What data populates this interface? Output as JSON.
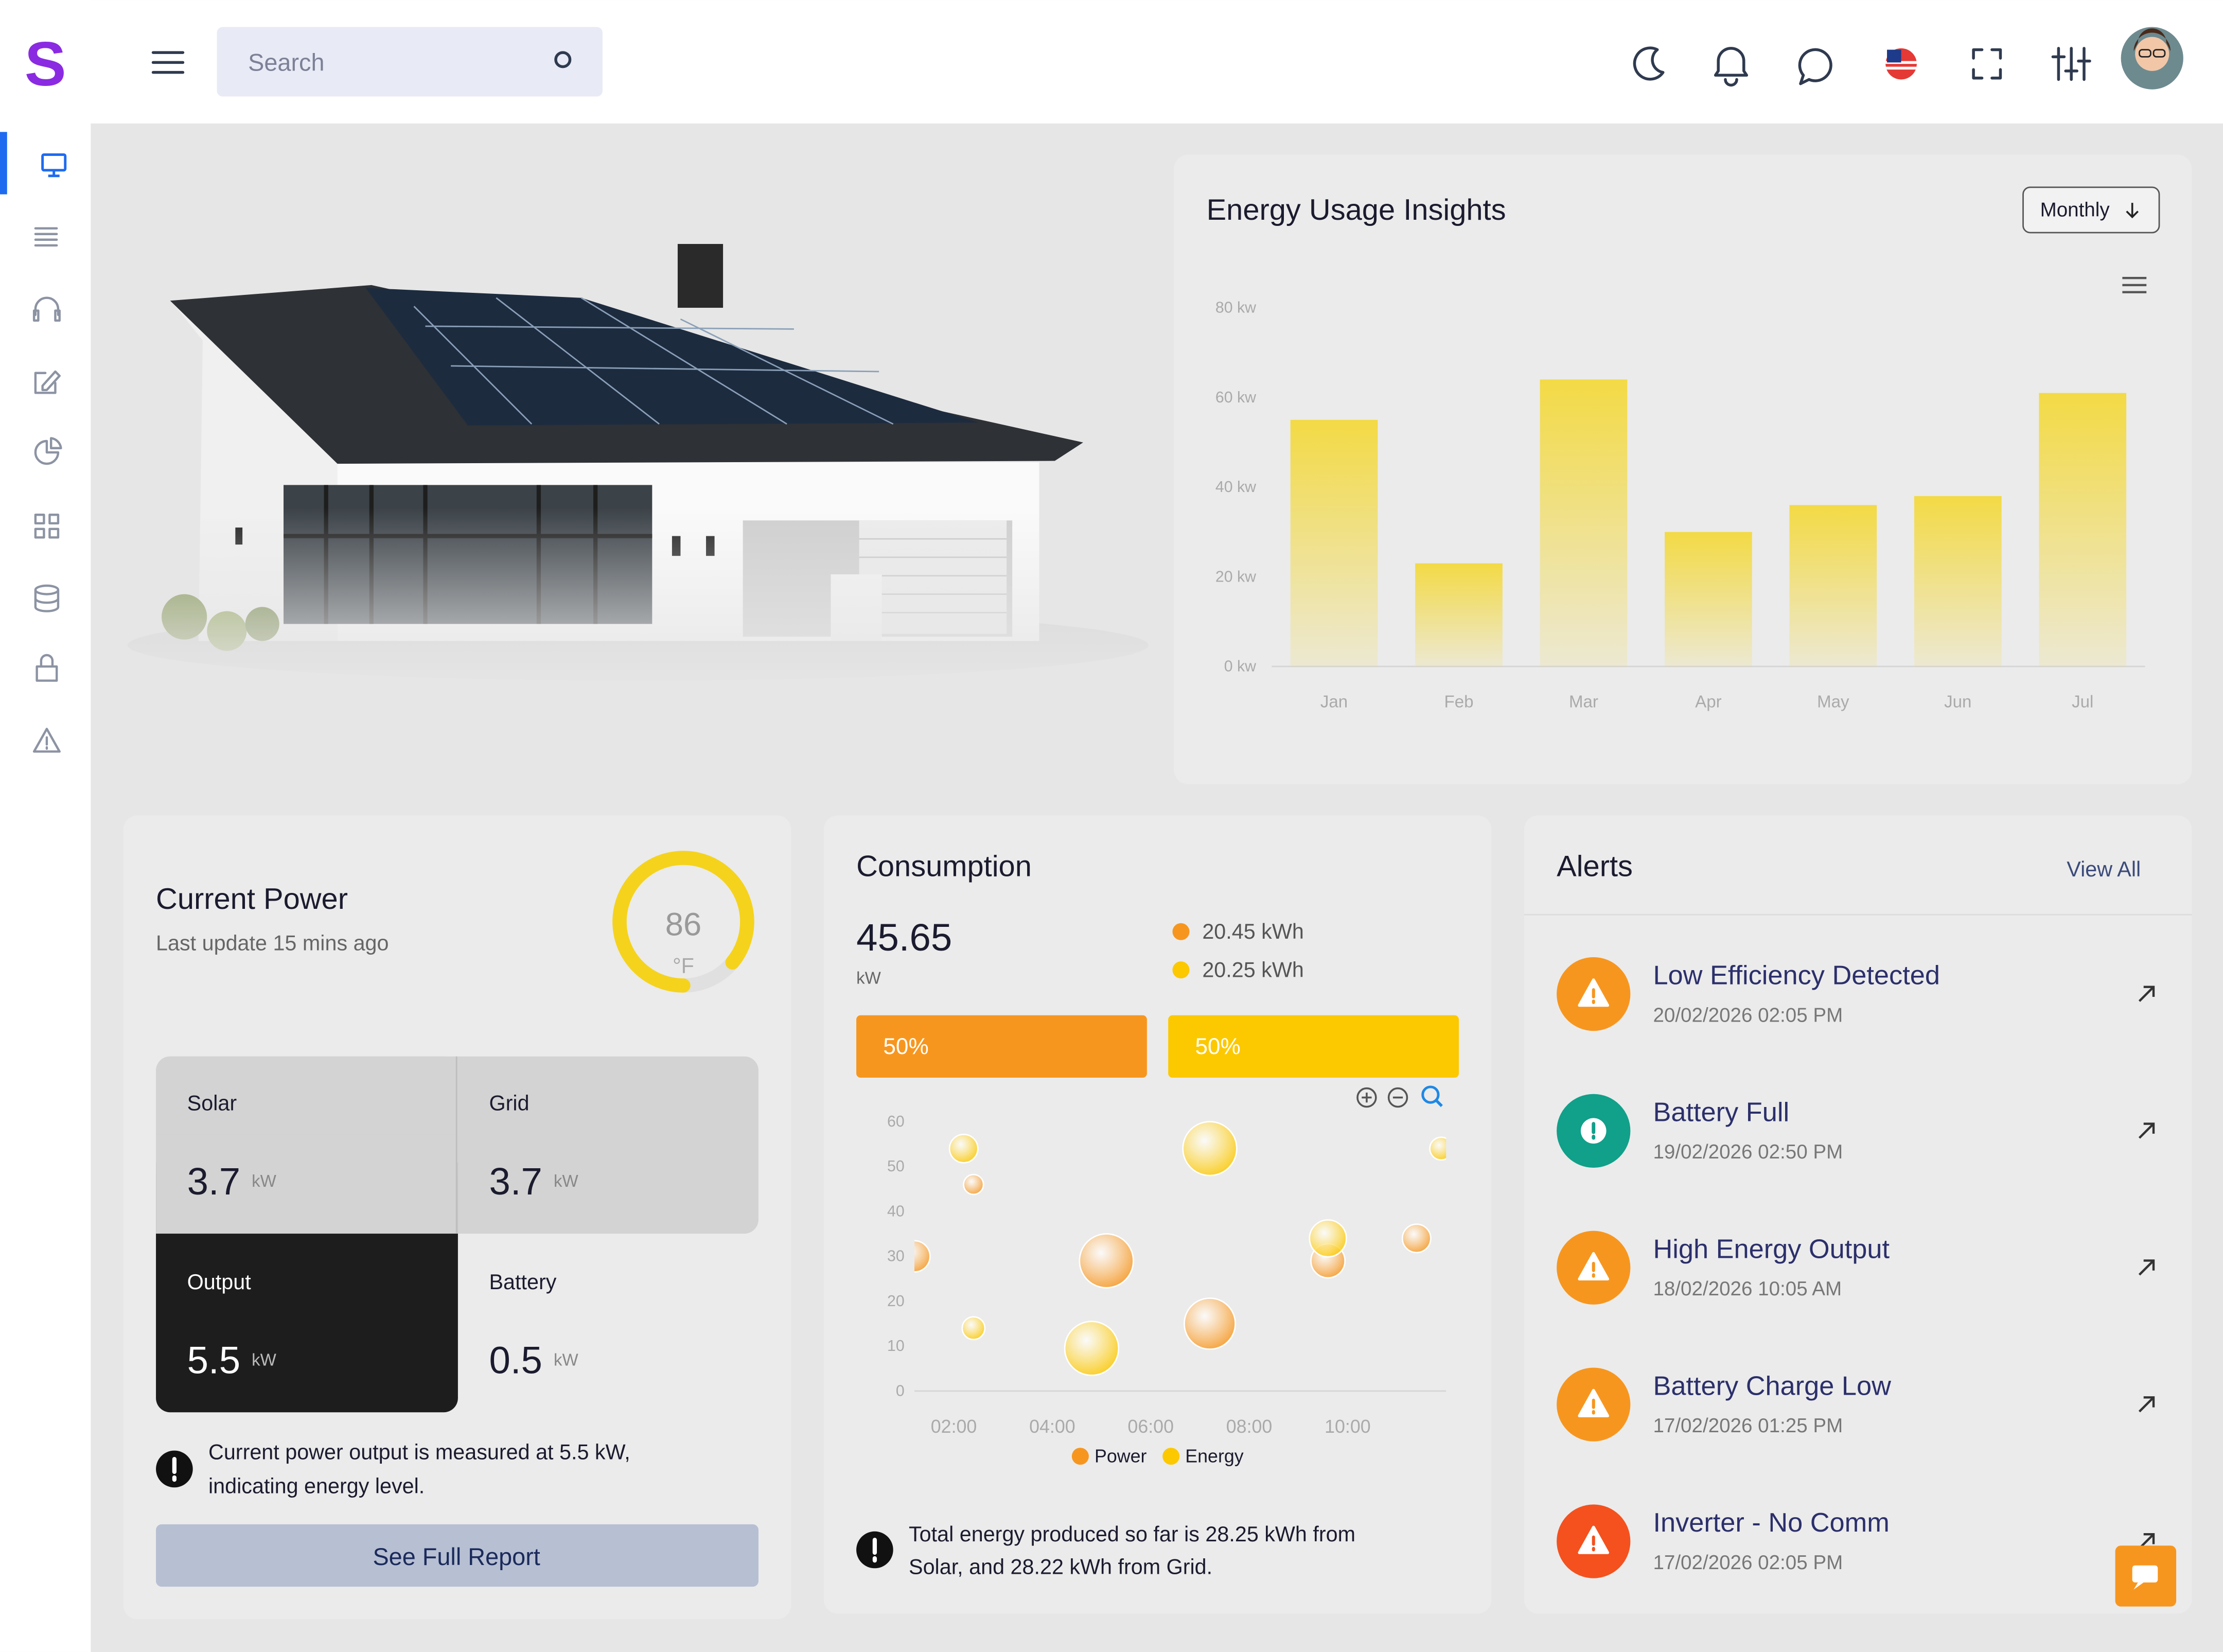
{
  "header": {
    "search_placeholder": "Search"
  },
  "energy_usage": {
    "title": "Energy Usage Insights",
    "period": "Monthly",
    "chart_data": {
      "type": "bar",
      "categories": [
        "Jan",
        "Feb",
        "Mar",
        "Apr",
        "May",
        "Jun",
        "Jul"
      ],
      "values": [
        55,
        23,
        64,
        30,
        36,
        38,
        61
      ],
      "color": "#f3da45",
      "ylim": [
        0,
        80
      ],
      "yticks": [
        {
          "value": 0,
          "label": "0 kw"
        },
        {
          "value": 20,
          "label": "20 kw"
        },
        {
          "value": 40,
          "label": "40 kw"
        },
        {
          "value": 60,
          "label": "60 kw"
        },
        {
          "value": 80,
          "label": "80 kw"
        }
      ],
      "grid": false
    }
  },
  "current_power": {
    "title": "Current Power",
    "subtitle": "Last update 15 mins ago",
    "gauge": {
      "value": 86,
      "unit": "°F",
      "range": [
        0,
        100
      ],
      "color": "#f5d31c"
    },
    "tiles": [
      {
        "label": "Solar",
        "value": "3.7",
        "unit": "kW"
      },
      {
        "label": "Grid",
        "value": "3.7",
        "unit": "kW"
      },
      {
        "label": "Output",
        "value": "5.5",
        "unit": "kW"
      },
      {
        "label": "Battery",
        "value": "0.5",
        "unit": "kW"
      }
    ],
    "note_lines": [
      "Current power output is measured at 5.5 kW,",
      "indicating energy level."
    ],
    "button": "See Full Report"
  },
  "consumption": {
    "title": "Consumption",
    "total": "45.65",
    "unit": "kW",
    "legend_items": [
      "20.45 kWh",
      "20.25 kWh"
    ],
    "progress": {
      "values": [
        50,
        50
      ],
      "value_labels": [
        "50%",
        "50%"
      ],
      "colors": [
        "#f7961e",
        "#fcc800"
      ]
    },
    "chart_data": {
      "type": "scatter",
      "xlim": [
        1.2,
        12
      ],
      "xticks": [
        {
          "value": 2,
          "label": "02:00"
        },
        {
          "value": 4,
          "label": "04:00"
        },
        {
          "value": 6,
          "label": "06:00"
        },
        {
          "value": 8,
          "label": "08:00"
        },
        {
          "value": 10,
          "label": "10:00"
        }
      ],
      "ylim": [
        0,
        60
      ],
      "yticks": [
        0,
        10,
        20,
        30,
        40,
        50,
        60
      ],
      "series": [
        {
          "name": "Power",
          "color": "#f7961e",
          "x": [
            2.4,
            1.2,
            5.1,
            9.6,
            11.4,
            7.2
          ],
          "values": [
            46,
            30,
            29,
            29,
            34,
            15
          ],
          "sizes": [
            7,
            11,
            19,
            12,
            10,
            18
          ]
        },
        {
          "name": "Energy",
          "color": "#fcc800",
          "x": [
            2.2,
            7.2,
            11.9,
            9.6,
            2.4,
            4.8
          ],
          "values": [
            54,
            54,
            54,
            34,
            14,
            9.5
          ],
          "sizes": [
            10,
            19,
            8,
            13,
            8,
            19
          ]
        }
      ]
    },
    "note_lines": [
      "Total energy produced so far is 28.25 kWh from",
      "Solar, and 28.22 kWh from Grid."
    ]
  },
  "alerts": {
    "title": "Alerts",
    "view_all": "View All",
    "items": [
      {
        "title": "Low Efficiency Detected",
        "time": "20/02/2026 02:05 PM",
        "color": "#f7961e"
      },
      {
        "title": "Battery Full",
        "time": "19/02/2026 02:50 PM",
        "color": "#11a08a"
      },
      {
        "title": "High Energy Output",
        "time": "18/02/2026 10:05 AM",
        "color": "#f7961e"
      },
      {
        "title": "Battery Charge Low",
        "time": "17/02/2026 01:25 PM",
        "color": "#f7961e"
      },
      {
        "title": "Inverter - No Comm",
        "time": "17/02/2026 02:05 PM",
        "color": "#f4511e"
      }
    ]
  }
}
